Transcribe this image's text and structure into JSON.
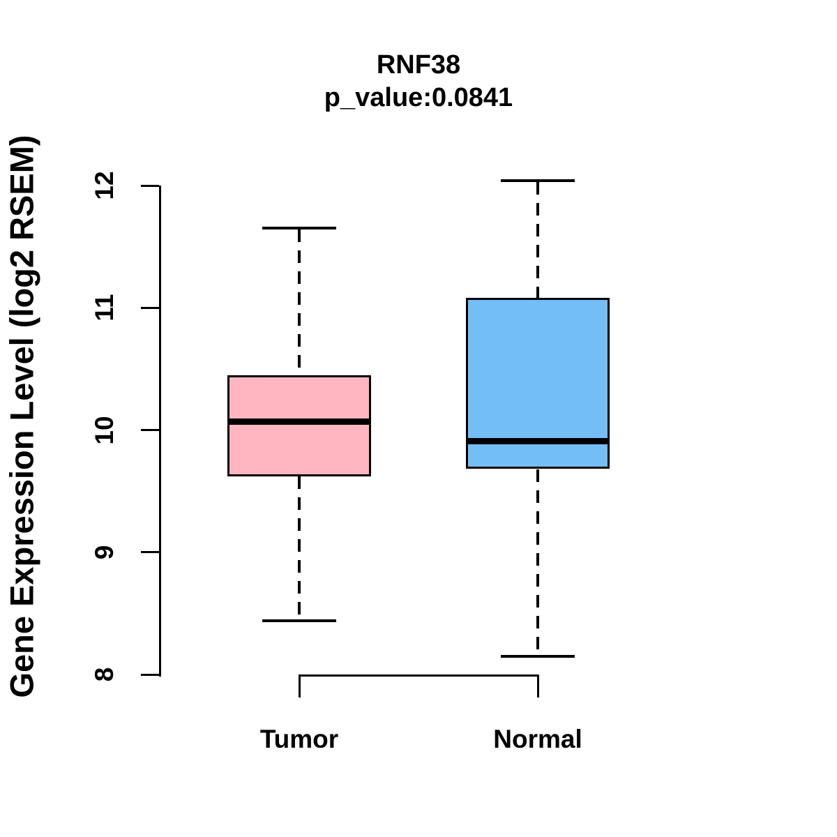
{
  "chart_data": {
    "type": "boxplot",
    "title": "RNF38",
    "subtitle": "p_value:0.0841",
    "ylabel": "Gene Expression Level (log2 RSEM)",
    "xlabel": "",
    "ylim": [
      8,
      12
    ],
    "yticks": [
      "8",
      "9",
      "10",
      "11",
      "12"
    ],
    "grid": false,
    "legend": "none",
    "categories": [
      "Tumor",
      "Normal"
    ],
    "series": [
      {
        "name": "Tumor",
        "min": 8.44,
        "q1": 9.63,
        "median": 10.07,
        "q3": 10.44,
        "max": 11.65,
        "fill": "#FFB6C1"
      },
      {
        "name": "Normal",
        "min": 8.15,
        "q1": 9.69,
        "median": 9.91,
        "q3": 11.07,
        "max": 12.04,
        "fill": "#74BEF8"
      }
    ],
    "colors": {
      "tumor_fill": "#FFB6C1",
      "normal_fill": "#74BEF8",
      "stroke": "#000000",
      "background": "#FFFFFF"
    }
  }
}
